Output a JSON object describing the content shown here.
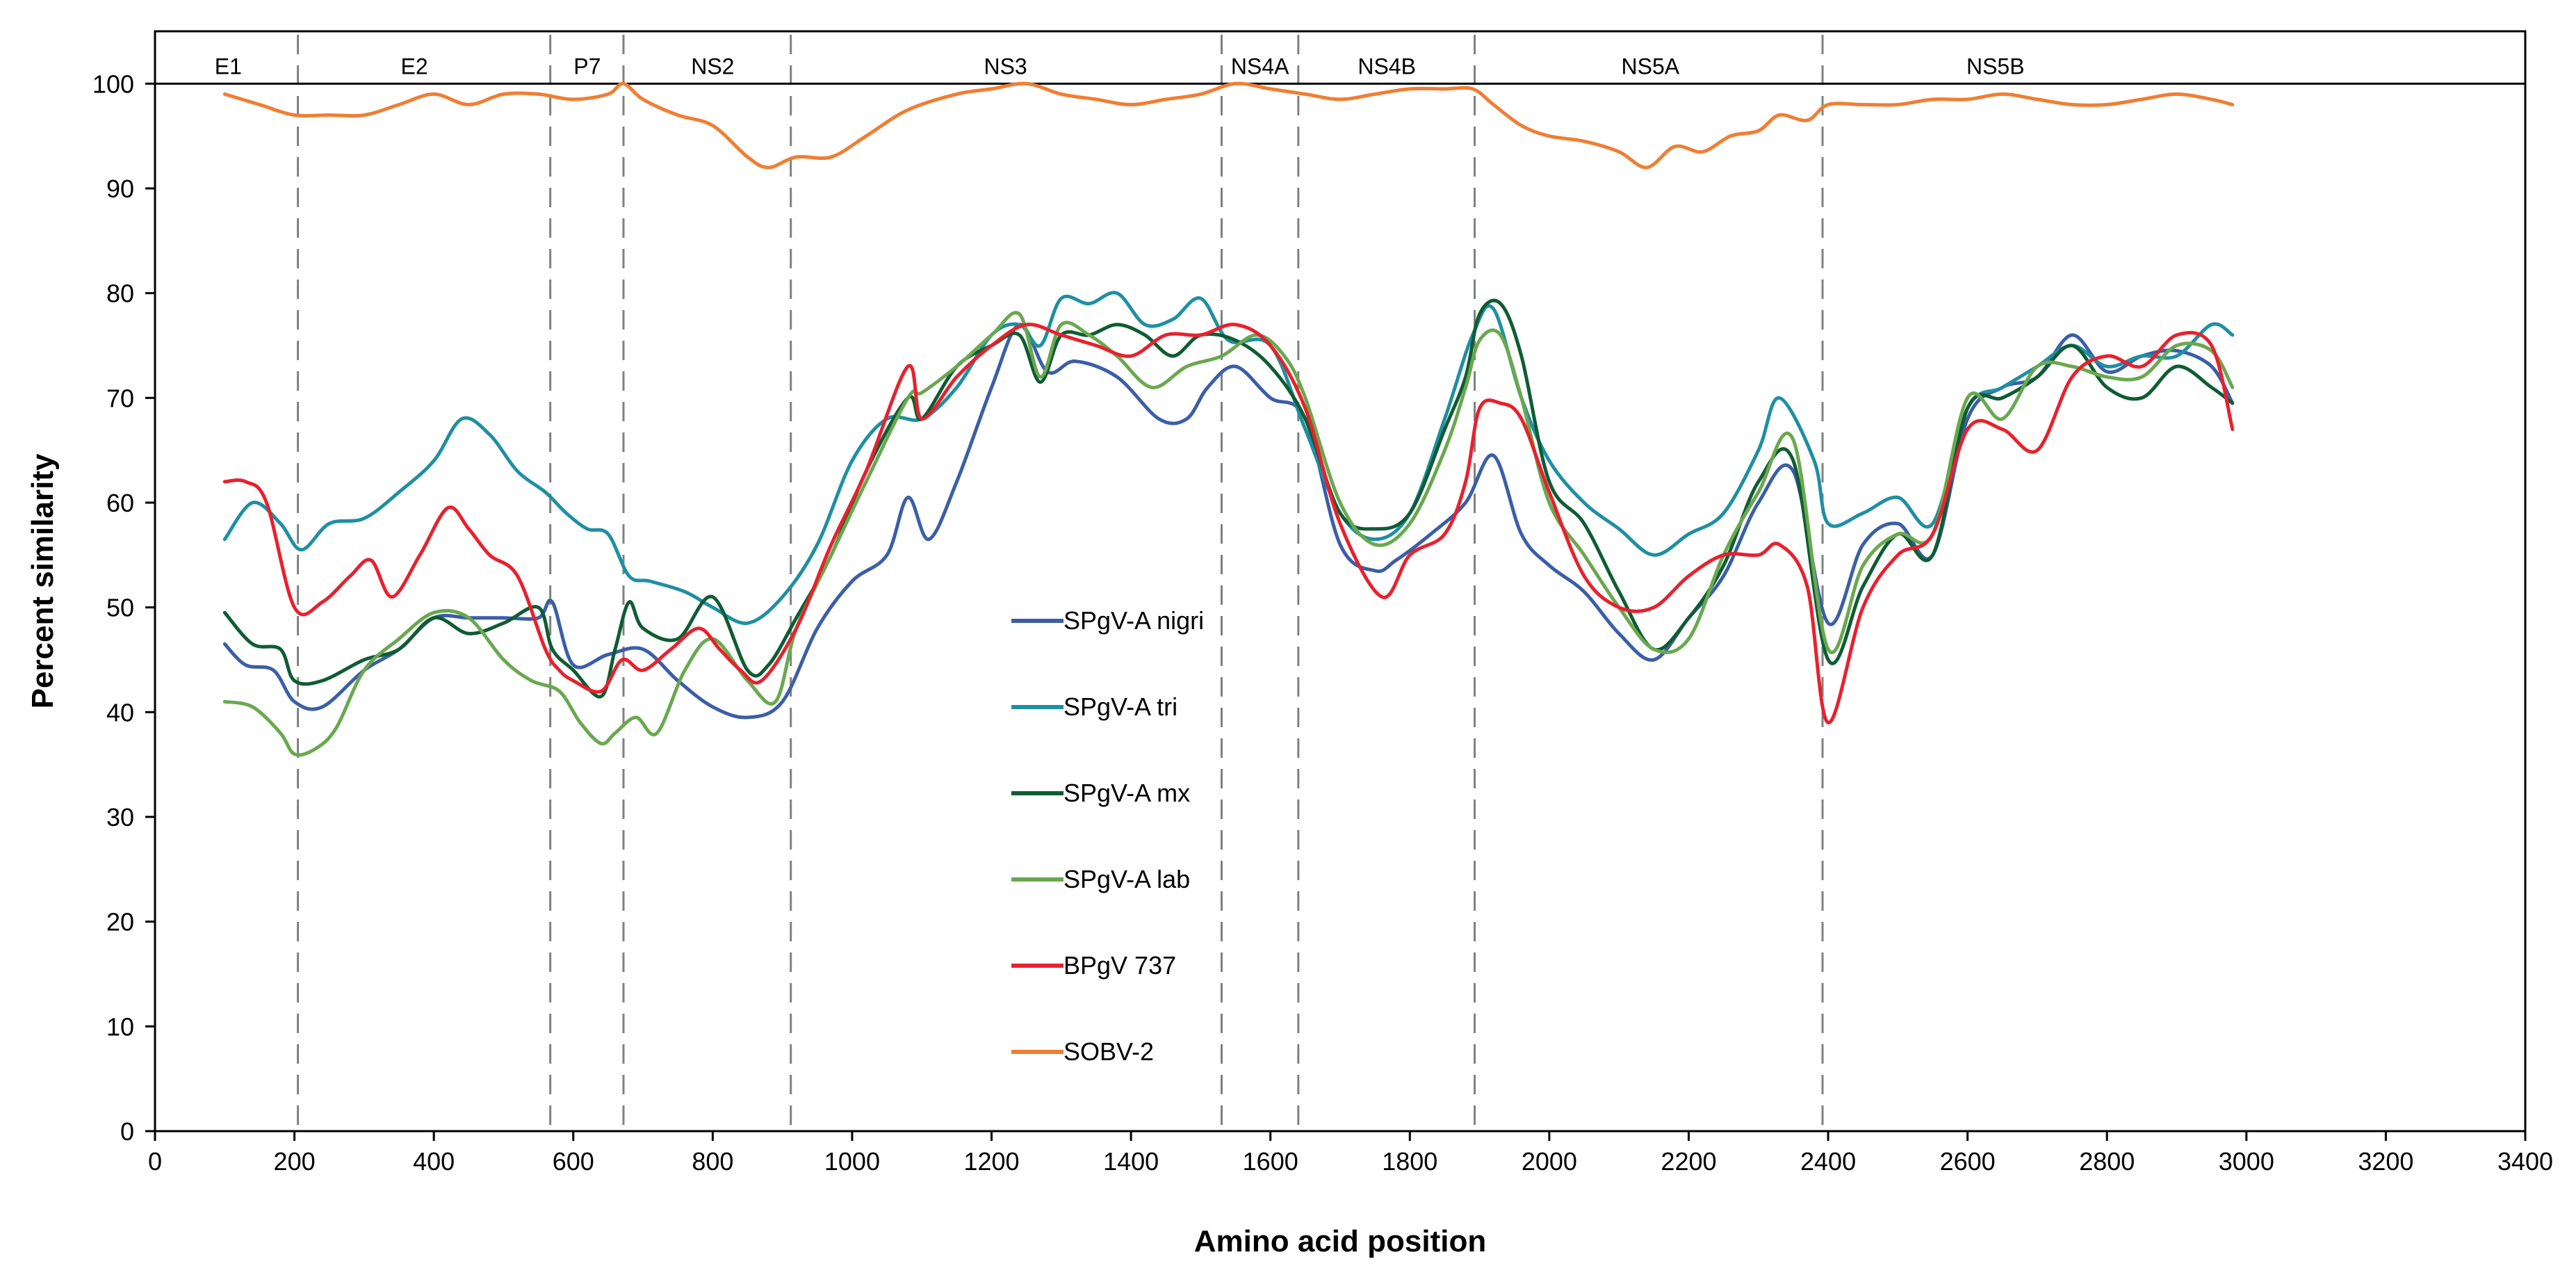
{
  "chart_data": {
    "type": "line",
    "title": "",
    "xlabel": "Amino acid position",
    "ylabel": "Percent similarity",
    "xlim": [
      0,
      3400
    ],
    "ylim": [
      0,
      105
    ],
    "xticks": [
      0,
      200,
      400,
      600,
      800,
      1000,
      1200,
      1400,
      1600,
      1800,
      2000,
      2200,
      2400,
      2600,
      2800,
      3000,
      3200,
      3400
    ],
    "yticks": [
      0,
      10,
      20,
      30,
      40,
      50,
      60,
      70,
      80,
      90,
      100
    ],
    "reference_line": 100,
    "region_boundaries": [
      205,
      567,
      672,
      912,
      1530,
      1640,
      1893,
      2392
    ],
    "regions": [
      {
        "name": "E1",
        "x": 105
      },
      {
        "name": "E2",
        "x": 372
      },
      {
        "name": "P7",
        "x": 620
      },
      {
        "name": "NS2",
        "x": 800
      },
      {
        "name": "NS3",
        "x": 1220
      },
      {
        "name": "NS4A",
        "x": 1585
      },
      {
        "name": "NS4B",
        "x": 1767
      },
      {
        "name": "NS5A",
        "x": 2145
      },
      {
        "name": "NS5B",
        "x": 2640
      }
    ],
    "legend_position": "center",
    "series": [
      {
        "name": "SPgV-A nigri",
        "color": "#3b5ea8",
        "x": [
          100,
          130,
          170,
          200,
          240,
          300,
          350,
          400,
          450,
          500,
          550,
          570,
          600,
          650,
          700,
          750,
          800,
          850,
          900,
          950,
          1000,
          1050,
          1080,
          1110,
          1150,
          1200,
          1240,
          1280,
          1320,
          1380,
          1440,
          1480,
          1510,
          1550,
          1600,
          1650,
          1700,
          1750,
          1780,
          1830,
          1880,
          1920,
          1960,
          2000,
          2050,
          2100,
          2150,
          2200,
          2250,
          2300,
          2350,
          2400,
          2450,
          2500,
          2550,
          2600,
          2650,
          2700,
          2750,
          2800,
          2850,
          2900,
          2950,
          2980
        ],
        "values": [
          46.5,
          44.5,
          44,
          41,
          40.5,
          44,
          46,
          49,
          49,
          49,
          49,
          50.5,
          44.5,
          45.5,
          46,
          43,
          40.5,
          39.5,
          41,
          48,
          52.5,
          55,
          60.5,
          56.5,
          62,
          71,
          77,
          72.5,
          73.5,
          72,
          68,
          68,
          71,
          73,
          70,
          68,
          56,
          53.5,
          54.5,
          57,
          60,
          64.5,
          57,
          54,
          51.5,
          47.5,
          45,
          49,
          53,
          60,
          63,
          48.5,
          56,
          58,
          55,
          68,
          71,
          72,
          76,
          72.5,
          74,
          74.5,
          73,
          69.5
        ]
      },
      {
        "name": "SPgV-A tri",
        "color": "#1f8fa2",
        "x": [
          100,
          140,
          180,
          210,
          250,
          300,
          350,
          400,
          440,
          480,
          520,
          560,
          590,
          620,
          650,
          680,
          710,
          760,
          800,
          850,
          900,
          950,
          1000,
          1050,
          1100,
          1150,
          1200,
          1240,
          1270,
          1300,
          1340,
          1380,
          1420,
          1460,
          1500,
          1540,
          1600,
          1650,
          1700,
          1750,
          1800,
          1850,
          1890,
          1920,
          1960,
          2000,
          2050,
          2100,
          2150,
          2200,
          2250,
          2300,
          2330,
          2380,
          2400,
          2450,
          2500,
          2550,
          2600,
          2650,
          2700,
          2750,
          2800,
          2850,
          2900,
          2950,
          2980
        ],
        "values": [
          56.5,
          60,
          58,
          55.5,
          58,
          58.5,
          61,
          64,
          68,
          66.5,
          63,
          61,
          59,
          57.5,
          57,
          53,
          52.5,
          51.5,
          50,
          48.5,
          51,
          56,
          64,
          68,
          68,
          71,
          76,
          77,
          75,
          79.5,
          79,
          80,
          77,
          77.5,
          79.5,
          75.5,
          75,
          67,
          59,
          56.5,
          59,
          68,
          76,
          78.5,
          70,
          64,
          60,
          57.5,
          55,
          57,
          59,
          65,
          70,
          64,
          58,
          59,
          60.5,
          58,
          69,
          71,
          73,
          75,
          73,
          74,
          74,
          77,
          76
        ]
      },
      {
        "name": "SPgV-A mx",
        "color": "#0f5c34",
        "x": [
          100,
          140,
          180,
          200,
          240,
          300,
          350,
          400,
          450,
          500,
          550,
          570,
          600,
          640,
          660,
          680,
          700,
          750,
          800,
          850,
          880,
          920,
          970,
          1020,
          1080,
          1100,
          1150,
          1200,
          1240,
          1270,
          1300,
          1340,
          1380,
          1420,
          1460,
          1500,
          1550,
          1600,
          1650,
          1700,
          1750,
          1800,
          1850,
          1880,
          1900,
          1930,
          1960,
          2000,
          2050,
          2100,
          2150,
          2200,
          2250,
          2300,
          2350,
          2400,
          2450,
          2500,
          2550,
          2600,
          2650,
          2700,
          2750,
          2800,
          2850,
          2900,
          2950,
          2980
        ],
        "values": [
          49.5,
          46.5,
          46,
          43,
          43,
          45,
          46,
          49,
          47.5,
          48.5,
          50,
          46,
          44,
          41.5,
          46,
          50.5,
          48,
          47,
          51,
          44,
          44.5,
          49,
          55,
          63,
          70,
          68,
          73,
          75,
          76,
          71.5,
          76,
          76,
          77,
          76,
          74,
          76,
          75.5,
          73,
          68,
          59,
          57.5,
          59,
          67,
          72,
          78,
          79,
          74,
          62,
          58,
          51.5,
          46,
          49,
          54,
          62,
          64,
          45,
          52,
          57,
          55,
          69,
          70,
          72,
          75,
          71,
          70,
          73,
          71,
          69.5
        ]
      },
      {
        "name": "SPgV-A lab",
        "color": "#6aa84f",
        "x": [
          100,
          140,
          180,
          200,
          230,
          260,
          300,
          350,
          400,
          450,
          500,
          540,
          580,
          610,
          640,
          660,
          690,
          720,
          760,
          800,
          850,
          890,
          920,
          970,
          1020,
          1080,
          1100,
          1150,
          1200,
          1240,
          1270,
          1300,
          1340,
          1380,
          1430,
          1480,
          1530,
          1580,
          1620,
          1650,
          1700,
          1750,
          1800,
          1850,
          1880,
          1900,
          1930,
          1960,
          2000,
          2050,
          2100,
          2150,
          2200,
          2250,
          2300,
          2350,
          2400,
          2450,
          2500,
          2550,
          2600,
          2650,
          2700,
          2750,
          2800,
          2850,
          2900,
          2950,
          2980
        ],
        "values": [
          41,
          40.5,
          38,
          36,
          36.5,
          38.5,
          44,
          47,
          49.5,
          49,
          45,
          43,
          42,
          39,
          37,
          38,
          39.5,
          38,
          44,
          47,
          43,
          41,
          48,
          55,
          62,
          70,
          70.5,
          73,
          76,
          78,
          72,
          77,
          76,
          74,
          71,
          73,
          74,
          76,
          74,
          70,
          60,
          56,
          58,
          65,
          71,
          75.5,
          76,
          70,
          60,
          55,
          50,
          46,
          47,
          55,
          61,
          66,
          46,
          54,
          57,
          57,
          70,
          68,
          73,
          73,
          72,
          72,
          75,
          74.5,
          71
        ]
      },
      {
        "name": "BPgV 737",
        "color": "#e8212e",
        "x": [
          100,
          130,
          160,
          200,
          240,
          280,
          310,
          340,
          380,
          420,
          450,
          480,
          520,
          560,
          580,
          600,
          640,
          670,
          700,
          740,
          780,
          810,
          840,
          870,
          920,
          970,
          1020,
          1080,
          1100,
          1150,
          1200,
          1250,
          1300,
          1350,
          1400,
          1450,
          1500,
          1550,
          1600,
          1650,
          1700,
          1760,
          1800,
          1850,
          1880,
          1900,
          1930,
          1960,
          2000,
          2050,
          2100,
          2150,
          2200,
          2250,
          2300,
          2330,
          2370,
          2400,
          2450,
          2500,
          2550,
          2600,
          2650,
          2700,
          2750,
          2800,
          2850,
          2900,
          2950,
          2980
        ],
        "values": [
          62,
          62,
          60,
          50,
          50.5,
          53,
          54.5,
          51,
          55,
          59.5,
          57.5,
          55,
          53,
          46,
          44,
          43,
          42,
          45,
          44,
          46,
          48,
          46,
          44,
          43,
          48,
          56,
          63,
          73,
          68,
          72,
          75,
          77,
          76,
          75,
          74,
          76,
          76,
          77,
          75,
          69,
          58,
          51,
          55,
          57,
          62,
          69,
          69.5,
          68,
          61,
          53,
          50,
          50,
          53,
          55,
          55,
          56,
          52,
          39,
          50,
          55,
          57,
          67,
          67,
          65,
          72,
          74,
          73,
          76,
          75,
          67
        ]
      },
      {
        "name": "SOBV-2",
        "color": "#f07e33",
        "x": [
          100,
          150,
          200,
          250,
          300,
          350,
          400,
          450,
          500,
          550,
          600,
          650,
          672,
          700,
          750,
          800,
          850,
          880,
          920,
          970,
          1020,
          1080,
          1150,
          1200,
          1250,
          1300,
          1350,
          1400,
          1450,
          1500,
          1550,
          1600,
          1650,
          1700,
          1750,
          1800,
          1850,
          1890,
          1920,
          1960,
          2000,
          2050,
          2100,
          2140,
          2180,
          2220,
          2260,
          2300,
          2330,
          2370,
          2400,
          2450,
          2500,
          2550,
          2600,
          2650,
          2700,
          2750,
          2800,
          2850,
          2900,
          2950,
          2980
        ],
        "values": [
          99,
          98,
          97,
          97,
          97,
          98,
          99,
          98,
          99,
          99,
          98.5,
          99,
          100,
          98.5,
          97,
          96,
          93,
          92,
          93,
          93,
          95,
          97.5,
          99,
          99.5,
          100,
          99,
          98.5,
          98,
          98.5,
          99,
          100,
          99.5,
          99,
          98.5,
          99,
          99.5,
          99.5,
          99.5,
          98,
          96,
          95,
          94.5,
          93.5,
          92,
          94,
          93.5,
          95,
          95.5,
          97,
          96.5,
          98,
          98,
          98,
          98.5,
          98.5,
          99,
          98.5,
          98,
          98,
          98.5,
          99,
          98.5,
          98
        ]
      }
    ]
  }
}
